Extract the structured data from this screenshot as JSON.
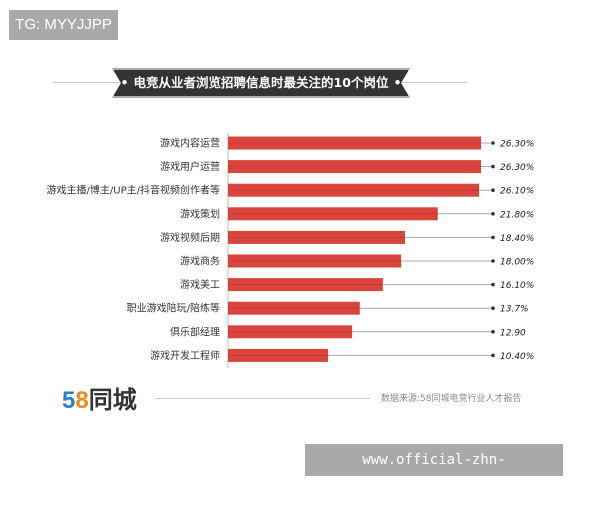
{
  "watermark_top": "TG: MYYJJPP",
  "watermark_bottom": "www.official-zhn-kaiyunsport.com",
  "logo": {
    "number": "58",
    "name": "同城"
  },
  "source": "数据来源:58同城电竞行业人才报告",
  "chart_data": {
    "type": "bar",
    "orientation": "horizontal",
    "title": "电竞从业者浏览招聘信息时最关注的10个岗位",
    "categories": [
      "游戏内容运营",
      "游戏用户运营",
      "游戏主播/博主/UP主/抖音视频创作者等",
      "游戏策划",
      "游戏视频后期",
      "游戏商务",
      "游戏美工",
      "职业游戏陪玩/陪练等",
      "俱乐部经理",
      "游戏开发工程师"
    ],
    "values": [
      26.3,
      26.3,
      26.1,
      21.8,
      18.4,
      18.0,
      16.1,
      13.7,
      12.9,
      10.4
    ],
    "data_labels": [
      "26.30%",
      "26.30%",
      "26.10%",
      "21.80%",
      "18.40%",
      "18.00%",
      "16.10%",
      "13.7%",
      "12.90",
      "10.40%"
    ],
    "unit": "%",
    "bar_color": "#d9453d",
    "grid": false
  }
}
